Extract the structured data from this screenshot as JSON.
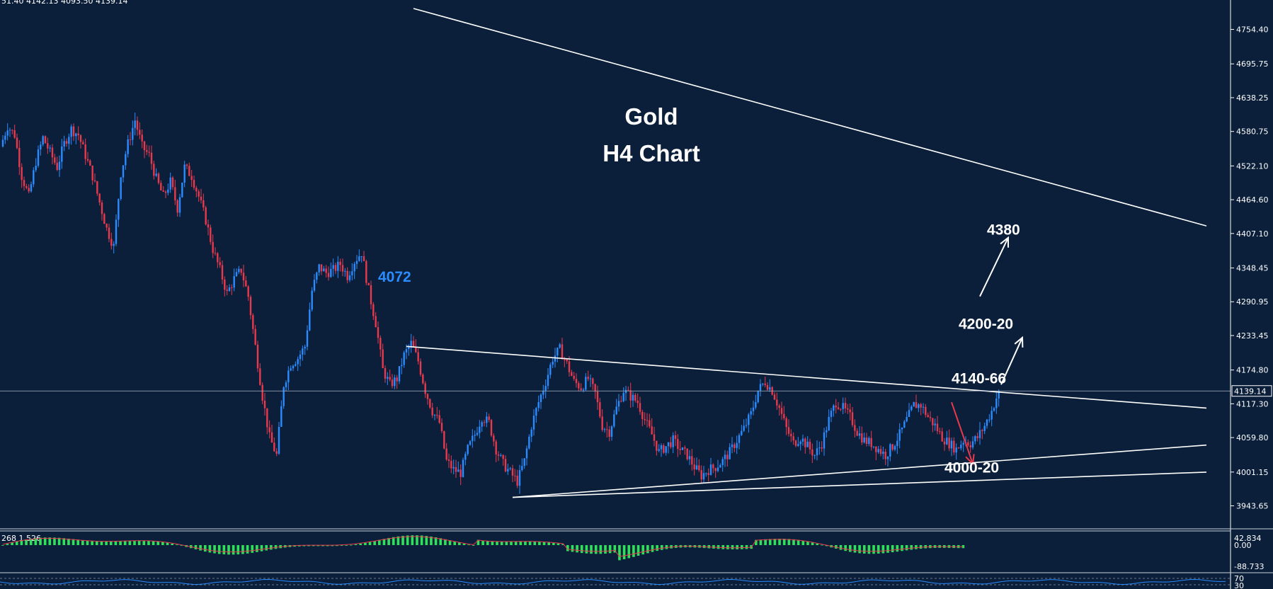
{
  "chart_data": {
    "type": "candlestick",
    "instrument": "Gold",
    "title_line1": "Gold",
    "title_line2": "H4 Chart",
    "ohlc_header": "51.40 4142.13 4093.50 4139.14",
    "y_ticks": [
      4754.4,
      4695.75,
      4638.25,
      4580.75,
      4522.1,
      4464.6,
      4407.1,
      4348.45,
      4290.95,
      4233.45,
      4174.8,
      4117.3,
      4059.8,
      4001.15,
      3943.65
    ],
    "y_tick_labels": [
      "4754.40",
      "4695.75",
      "4638.25",
      "4580.75",
      "4522.10",
      "4464.60",
      "4407.10",
      "4348.45",
      "4290.95",
      "4233.45",
      "4174.80",
      "4117.30",
      "4059.80",
      "4001.15",
      "3943.65"
    ],
    "current_price": 4139.14,
    "current_price_label": "4139.14",
    "ylim": [
      3925,
      4790
    ],
    "colors": {
      "background": "#0b1f3a",
      "bull": "#2a8cff",
      "bear": "#e8394d",
      "line": "#ffffff",
      "osc_bar": "#2ee05a",
      "osc_signal": "#e8394d"
    },
    "price_path": [
      4555,
      4590,
      4575,
      4505,
      4470,
      4530,
      4570,
      4545,
      4520,
      4560,
      4585,
      4575,
      4540,
      4505,
      4460,
      4415,
      4385,
      4510,
      4560,
      4600,
      4555,
      4540,
      4500,
      4470,
      4495,
      4450,
      4520,
      4505,
      4470,
      4430,
      4380,
      4345,
      4305,
      4330,
      4345,
      4300,
      4215,
      4130,
      4060,
      4030,
      4150,
      4185,
      4195,
      4215,
      4310,
      4350,
      4340,
      4345,
      4355,
      4335,
      4360,
      4375,
      4310,
      4255,
      4175,
      4150,
      4160,
      4200,
      4220,
      4190,
      4140,
      4105,
      4085,
      4020,
      4005,
      4000,
      4040,
      4065,
      4095,
      4085,
      4040,
      4015,
      4000,
      3985,
      4020,
      4080,
      4120,
      4155,
      4195,
      4210,
      4185,
      4155,
      4145,
      4160,
      4135,
      4080,
      4070,
      4110,
      4140,
      4130,
      4120,
      4090,
      4065,
      4035,
      4045,
      4055,
      4040,
      4030,
      4010,
      3995,
      4005,
      4010,
      4020,
      4035,
      4055,
      4075,
      4100,
      4140,
      4155,
      4140,
      4110,
      4075,
      4050,
      4060,
      4045,
      4030,
      4050,
      4090,
      4120,
      4110,
      4095,
      4070,
      4055,
      4050,
      4040,
      4030,
      4045,
      4065,
      4090,
      4115,
      4115,
      4095,
      4080,
      4060,
      4050,
      4040,
      4055,
      4050,
      4060,
      4080,
      4105,
      4139
    ],
    "annotations": [
      {
        "text": "4072",
        "price": 4325,
        "bar": 53,
        "style": "blue"
      },
      {
        "text": "4380",
        "price": 4405,
        "bar": 139,
        "style": "white"
      },
      {
        "text": "4200-20",
        "price": 4245,
        "bar": 135,
        "style": "white"
      },
      {
        "text": "4140-66",
        "price": 4152,
        "bar": 134,
        "style": "white"
      },
      {
        "text": "4000-20",
        "price": 4000,
        "bar": 133,
        "style": "white"
      }
    ],
    "trendlines": [
      {
        "name": "long-term-resistance",
        "from": [
          58,
          4790
        ],
        "to": [
          170,
          4420
        ]
      },
      {
        "name": "triangle-upper",
        "from": [
          57,
          4215
        ],
        "to": [
          170,
          4110
        ]
      },
      {
        "name": "triangle-lower-steep",
        "from": [
          72,
          3958
        ],
        "to": [
          170,
          4047
        ]
      },
      {
        "name": "triangle-lower-flat",
        "from": [
          72,
          3958
        ],
        "to": [
          170,
          4001
        ]
      }
    ],
    "arrows": [
      {
        "name": "bull-arrow-1",
        "from": [
          141,
          4150
        ],
        "to": [
          144,
          4230
        ],
        "color": "white"
      },
      {
        "name": "bull-arrow-2",
        "from": [
          138,
          4300
        ],
        "to": [
          142,
          4400
        ],
        "color": "white"
      },
      {
        "name": "bear-arrow",
        "from": [
          134,
          4120
        ],
        "to": [
          137,
          4015
        ],
        "color": "red"
      }
    ],
    "oscillator": {
      "label": "268 1.526",
      "ticks": [
        "42.834",
        "0.00",
        "-88.733"
      ]
    },
    "rsi": {
      "ticks": [
        "70",
        "30"
      ]
    }
  }
}
